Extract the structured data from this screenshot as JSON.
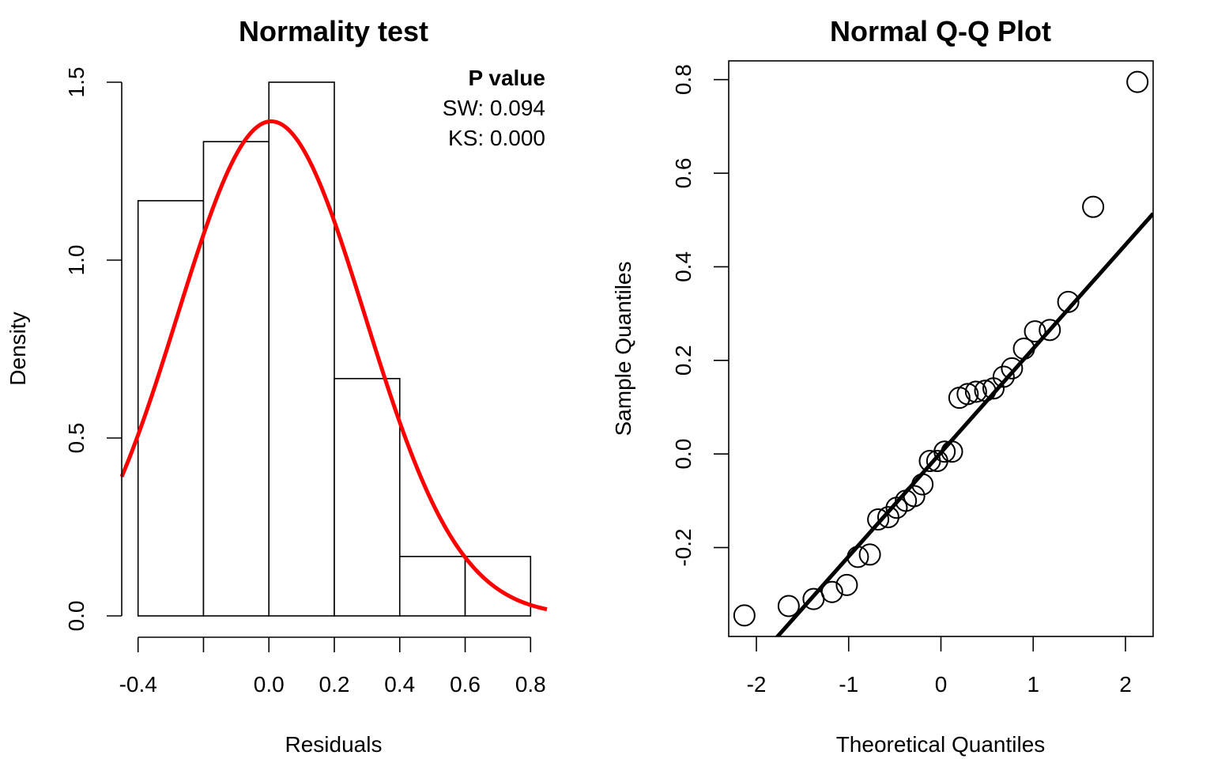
{
  "chart_data": [
    {
      "type": "bar",
      "title": "Normality test",
      "xlabel": "Residuals",
      "ylabel": "Density",
      "xlim": [
        -0.45,
        0.85
      ],
      "ylim": [
        0,
        1.5
      ],
      "x_ticks": [
        -0.4,
        0.0,
        0.2,
        0.4,
        0.6,
        0.8
      ],
      "x_tick_labels": [
        "-0.4",
        "0.0",
        "0.2",
        "0.4",
        "0.6",
        "0.8"
      ],
      "x_tick_marks": [
        -0.4,
        -0.2,
        0.0,
        0.2,
        0.4,
        0.6,
        0.8
      ],
      "y_ticks": [
        0.0,
        0.5,
        1.0,
        1.5
      ],
      "y_tick_labels": [
        "0.0",
        "0.5",
        "1.0",
        "1.5"
      ],
      "bins": [
        {
          "from": -0.4,
          "to": -0.2,
          "density": 1.167
        },
        {
          "from": -0.2,
          "to": 0.0,
          "density": 1.333
        },
        {
          "from": 0.0,
          "to": 0.2,
          "density": 1.5
        },
        {
          "from": 0.2,
          "to": 0.4,
          "density": 0.667
        },
        {
          "from": 0.4,
          "to": 0.6,
          "density": 0.167
        },
        {
          "from": 0.6,
          "to": 0.8,
          "density": 0.167
        }
      ],
      "normal_curve": {
        "mean": 0.007,
        "sd": 0.287,
        "color": "#ff0000"
      },
      "legend": {
        "title": "P value",
        "lines": [
          "SW: 0.094",
          "KS: 0.000"
        ],
        "placement": "top-right"
      }
    },
    {
      "type": "scatter",
      "title": "Normal Q-Q Plot",
      "xlabel": "Theoretical Quantiles",
      "ylabel": "Sample Quantiles",
      "xlim": [
        -2.3,
        2.3
      ],
      "ylim": [
        -0.39,
        0.84
      ],
      "x_ticks": [
        -2,
        -1,
        0,
        1,
        2
      ],
      "x_tick_labels": [
        "-2",
        "-1",
        "0",
        "1",
        "2"
      ],
      "y_ticks": [
        -0.2,
        0.0,
        0.2,
        0.4,
        0.6,
        0.8
      ],
      "y_tick_labels": [
        "-0.2",
        "0.0",
        "0.2",
        "0.4",
        "0.6",
        "0.8"
      ],
      "points": [
        [
          -2.13,
          -0.345
        ],
        [
          -1.65,
          -0.325
        ],
        [
          -1.38,
          -0.31
        ],
        [
          -1.18,
          -0.295
        ],
        [
          -1.02,
          -0.28
        ],
        [
          -0.9,
          -0.22
        ],
        [
          -0.77,
          -0.215
        ],
        [
          -0.68,
          -0.14
        ],
        [
          -0.57,
          -0.135
        ],
        [
          -0.48,
          -0.115
        ],
        [
          -0.38,
          -0.1
        ],
        [
          -0.29,
          -0.09
        ],
        [
          -0.2,
          -0.065
        ],
        [
          -0.12,
          -0.015
        ],
        [
          -0.04,
          -0.015
        ],
        [
          0.04,
          0.005
        ],
        [
          0.12,
          0.005
        ],
        [
          0.2,
          0.12
        ],
        [
          0.29,
          0.128
        ],
        [
          0.38,
          0.133
        ],
        [
          0.48,
          0.135
        ],
        [
          0.57,
          0.14
        ],
        [
          0.68,
          0.165
        ],
        [
          0.77,
          0.183
        ],
        [
          0.9,
          0.225
        ],
        [
          1.02,
          0.262
        ],
        [
          1.18,
          0.265
        ],
        [
          1.38,
          0.325
        ],
        [
          1.65,
          0.528
        ],
        [
          2.13,
          0.795
        ]
      ],
      "reference_line": {
        "intercept": 0.003,
        "slope": 0.222,
        "color": "#000000"
      }
    }
  ]
}
